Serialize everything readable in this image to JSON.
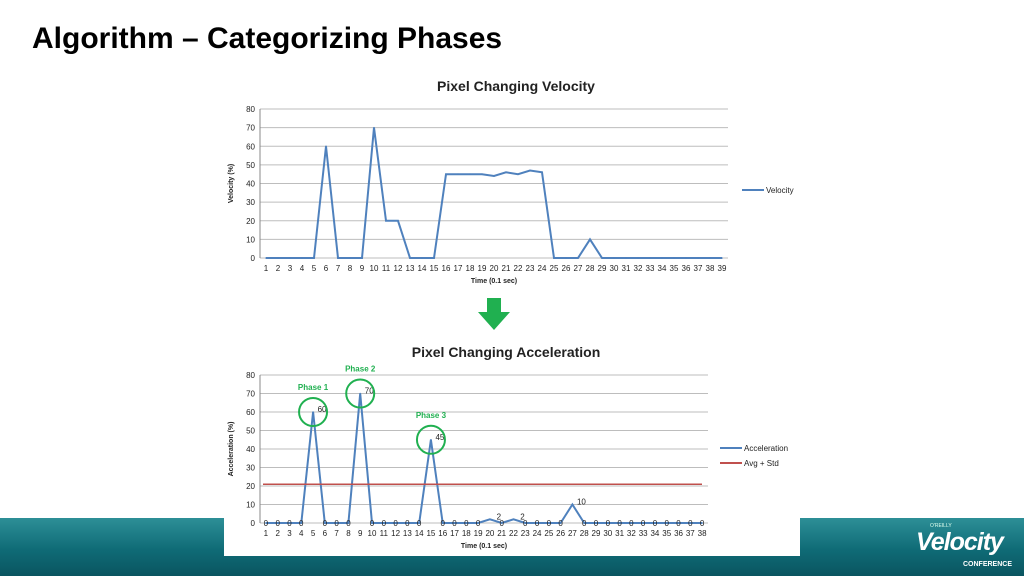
{
  "slide": {
    "title": "Algorithm – Categorizing Phases"
  },
  "logo": {
    "brand": "Velocity",
    "publisher": "O'REILLY",
    "subtitle": "CONFERENCE"
  },
  "colors": {
    "series": "#4f81bd",
    "threshold": "#c0504d",
    "phase": "#20b050",
    "arrow": "#20b050"
  },
  "chart_data": [
    {
      "type": "line",
      "title": "Pixel Changing Velocity",
      "xlabel": "Time (0.1 sec)",
      "ylabel": "Velocity (%)",
      "ylim": [
        0,
        80
      ],
      "yticks": [
        0,
        10,
        20,
        30,
        40,
        50,
        60,
        70,
        80
      ],
      "x": [
        1,
        2,
        3,
        4,
        5,
        6,
        7,
        8,
        9,
        10,
        11,
        12,
        13,
        14,
        15,
        16,
        17,
        18,
        19,
        20,
        21,
        22,
        23,
        24,
        25,
        26,
        27,
        28,
        29,
        30,
        31,
        32,
        33,
        34,
        35,
        36,
        37,
        38,
        39
      ],
      "grid": true,
      "legend_position": "right",
      "series": [
        {
          "name": "Velocity",
          "values": [
            0,
            0,
            0,
            0,
            0,
            60,
            0,
            0,
            0,
            70,
            20,
            20,
            0,
            0,
            0,
            45,
            45,
            45,
            45,
            44,
            46,
            45,
            47,
            46,
            0,
            0,
            0,
            10,
            0,
            0,
            0,
            0,
            0,
            0,
            0,
            0,
            0,
            0,
            0
          ]
        }
      ]
    },
    {
      "type": "line",
      "title": "Pixel Changing Acceleration",
      "xlabel": "Time (0.1 sec)",
      "ylabel": "Acceleration (%)",
      "ylim": [
        0,
        80
      ],
      "yticks": [
        0,
        10,
        20,
        30,
        40,
        50,
        60,
        70,
        80
      ],
      "x": [
        1,
        2,
        3,
        4,
        5,
        6,
        7,
        8,
        9,
        10,
        11,
        12,
        13,
        14,
        15,
        16,
        17,
        18,
        19,
        20,
        21,
        22,
        23,
        24,
        25,
        26,
        27,
        28,
        29,
        30,
        31,
        32,
        33,
        34,
        35,
        36,
        37,
        38
      ],
      "grid": true,
      "legend_position": "right",
      "series": [
        {
          "name": "Acceleration",
          "values": [
            0,
            0,
            0,
            0,
            60,
            0,
            0,
            0,
            70,
            0,
            0,
            0,
            0,
            0,
            45,
            0,
            0,
            0,
            0,
            2,
            0,
            2,
            0,
            0,
            0,
            0,
            10,
            0,
            0,
            0,
            0,
            0,
            0,
            0,
            0,
            0,
            0,
            0
          ]
        },
        {
          "name": "Avg  + Std",
          "values": [
            21,
            21,
            21,
            21,
            21,
            21,
            21,
            21,
            21,
            21,
            21,
            21,
            21,
            21,
            21,
            21,
            21,
            21,
            21,
            21,
            21,
            21,
            21,
            21,
            21,
            21,
            21,
            21,
            21,
            21,
            21,
            21,
            21,
            21,
            21,
            21,
            21,
            21
          ]
        }
      ],
      "data_labels": {
        "series": "Acceleration",
        "values": [
          "0",
          "0",
          "0",
          "0",
          "60",
          "0",
          "0",
          "0",
          "70",
          "0",
          "0",
          "0",
          "0",
          "0",
          "45",
          "0",
          "0",
          "0",
          "0",
          "2",
          "0",
          "2",
          "0",
          "0",
          "0",
          "0",
          "10",
          "0",
          "0",
          "0",
          "0",
          "0",
          "0",
          "0",
          "0",
          "0",
          "0",
          "0"
        ]
      },
      "annotations": [
        {
          "label": "Phase 1",
          "x": 5,
          "y": 60
        },
        {
          "label": "Phase 2",
          "x": 9,
          "y": 70
        },
        {
          "label": "Phase 3",
          "x": 15,
          "y": 45
        }
      ]
    }
  ]
}
